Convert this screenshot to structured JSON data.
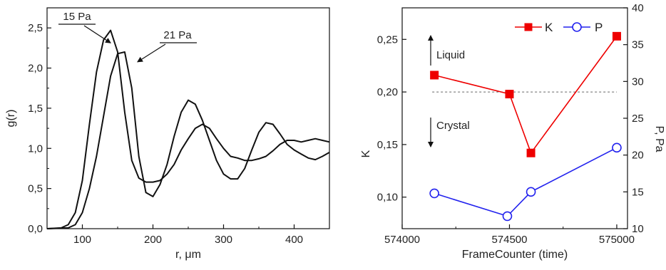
{
  "chart_data": [
    {
      "type": "line",
      "xlabel": "r, μm",
      "ylabel": "g(r)",
      "xlim": [
        50,
        450
      ],
      "ylim": [
        0,
        2.75
      ],
      "x_ticks": [
        100,
        200,
        300,
        400
      ],
      "y_ticks": [
        0.0,
        0.5,
        1.0,
        1.5,
        2.0,
        2.5
      ],
      "y_tick_labels": [
        "0,0",
        "0,5",
        "1,0",
        "1,5",
        "2,0",
        "2,5"
      ],
      "grid": false,
      "series": [
        {
          "name": "15 Pa",
          "x": [
            50,
            70,
            80,
            90,
            100,
            110,
            120,
            130,
            140,
            150,
            160,
            170,
            180,
            190,
            200,
            210,
            220,
            230,
            240,
            250,
            260,
            270,
            280,
            290,
            300,
            310,
            320,
            330,
            340,
            350,
            360,
            370,
            380,
            390,
            400,
            410,
            420,
            430,
            440,
            450
          ],
          "y": [
            0.0,
            0.01,
            0.05,
            0.2,
            0.6,
            1.3,
            1.95,
            2.35,
            2.47,
            2.2,
            1.45,
            0.85,
            0.63,
            0.58,
            0.58,
            0.6,
            0.68,
            0.8,
            0.98,
            1.12,
            1.25,
            1.3,
            1.25,
            1.12,
            1.0,
            0.9,
            0.88,
            0.85,
            0.85,
            0.87,
            0.9,
            0.97,
            1.05,
            1.1,
            1.1,
            1.08,
            1.1,
            1.12,
            1.1,
            1.08
          ]
        },
        {
          "name": "21 Pa",
          "x": [
            50,
            80,
            90,
            100,
            110,
            120,
            130,
            140,
            150,
            160,
            170,
            180,
            190,
            200,
            210,
            220,
            230,
            240,
            250,
            260,
            270,
            280,
            290,
            300,
            310,
            320,
            330,
            340,
            350,
            360,
            370,
            380,
            390,
            400,
            410,
            420,
            430,
            440,
            450
          ],
          "y": [
            0.0,
            0.01,
            0.05,
            0.2,
            0.5,
            0.9,
            1.4,
            1.9,
            2.18,
            2.2,
            1.75,
            0.9,
            0.45,
            0.4,
            0.55,
            0.8,
            1.15,
            1.45,
            1.6,
            1.55,
            1.35,
            1.1,
            0.85,
            0.68,
            0.62,
            0.62,
            0.75,
            0.98,
            1.2,
            1.32,
            1.3,
            1.18,
            1.05,
            0.98,
            0.93,
            0.88,
            0.86,
            0.9,
            0.95
          ]
        }
      ],
      "annotations": [
        {
          "label": "15 Pa",
          "points_to": {
            "x": 142,
            "y": 2.42
          }
        },
        {
          "label": "21 Pa",
          "points_to": {
            "x": 160,
            "y": 2.13
          }
        }
      ]
    },
    {
      "type": "line",
      "xlabel": "FrameCounter (time)",
      "ylabel": "K",
      "y2label": "P, Pa",
      "xlim": [
        574000,
        575050
      ],
      "ylim": [
        0.07,
        0.28
      ],
      "y2lim": [
        10,
        40
      ],
      "x_ticks": [
        574000,
        574500,
        575000
      ],
      "y_ticks": [
        0.1,
        0.15,
        0.2,
        0.25
      ],
      "y_tick_labels": [
        "0,10",
        "0,15",
        "0,20",
        "0,25"
      ],
      "y2_ticks": [
        10,
        15,
        20,
        25,
        30,
        35,
        40
      ],
      "grid": false,
      "reference_line": {
        "y": 0.2,
        "style": "dashed"
      },
      "legend": "top-right",
      "series": [
        {
          "name": "K",
          "axis": "left",
          "color": "#ee0000",
          "marker": "square-filled",
          "x": [
            574150,
            574500,
            574600,
            575000
          ],
          "y": [
            0.216,
            0.198,
            0.142,
            0.253
          ]
        },
        {
          "name": "P",
          "axis": "right",
          "color": "#2222ee",
          "marker": "circle-open",
          "x": [
            574150,
            574490,
            574600,
            575000
          ],
          "y": [
            14.8,
            11.7,
            15.0,
            21.0
          ]
        }
      ],
      "annotations": [
        {
          "label": "Liquid",
          "arrow": "up"
        },
        {
          "label": "Crystal",
          "arrow": "down"
        }
      ]
    }
  ]
}
